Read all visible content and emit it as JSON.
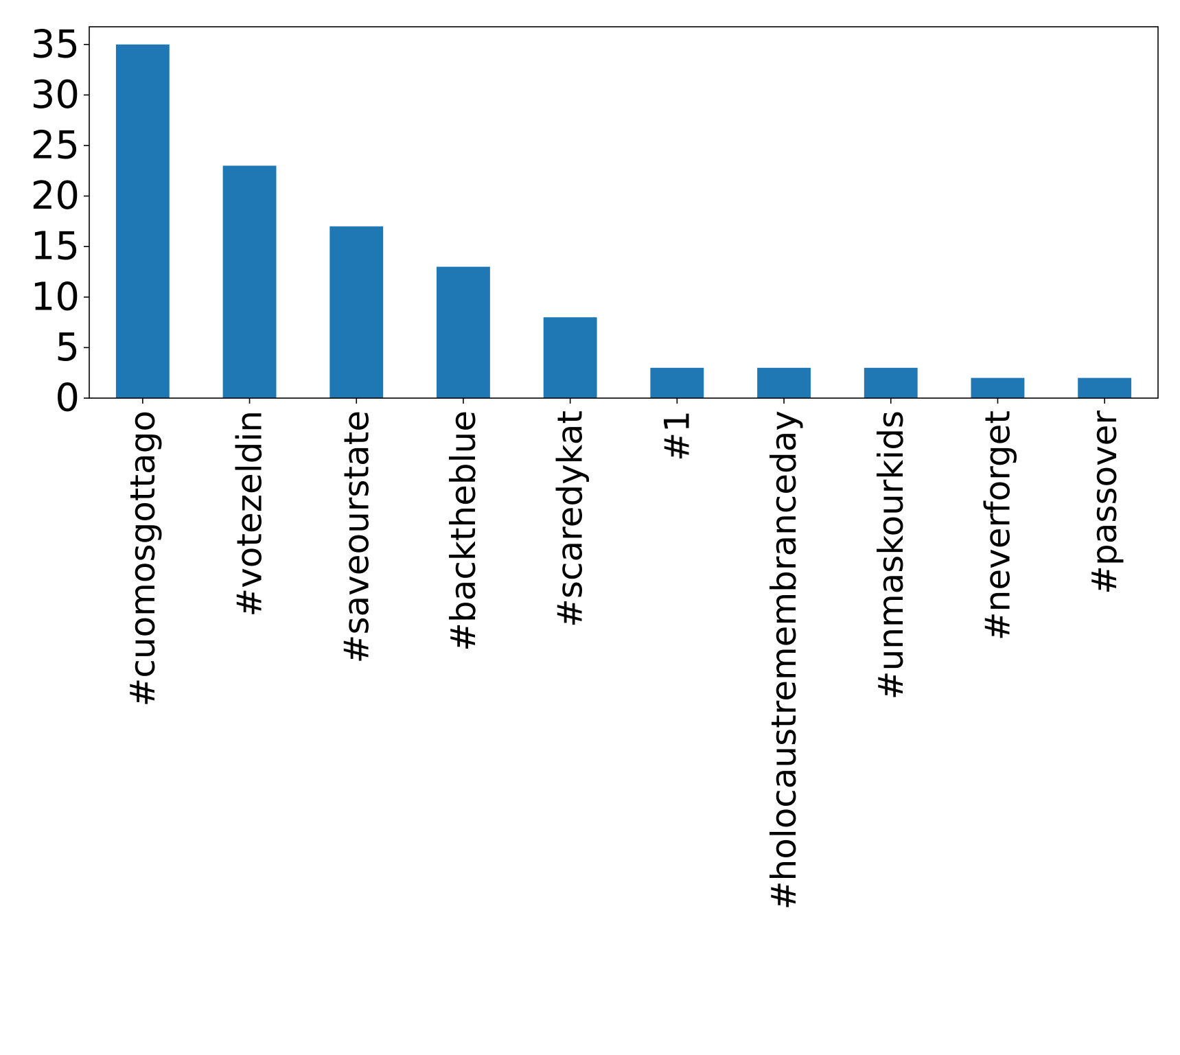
{
  "chart_data": {
    "type": "bar",
    "title": "",
    "xlabel": "",
    "ylabel": "",
    "categories": [
      "#cuomosgottago",
      "#votezeldin",
      "#saveourstate",
      "#backtheblue",
      "#scaredykat",
      "#1",
      "#holocaustremembranceday",
      "#unmaskourkids",
      "#neverforget",
      "#passover"
    ],
    "values": [
      35,
      23,
      17,
      13,
      8,
      3,
      3,
      3,
      2,
      2
    ],
    "ylim": [
      0,
      36.75
    ],
    "yticks": [
      0,
      5,
      10,
      15,
      20,
      25,
      30,
      35
    ],
    "grid": false,
    "legend": "none",
    "bar_color": "#1f77b4",
    "x_tick_rotation": "vertical"
  }
}
